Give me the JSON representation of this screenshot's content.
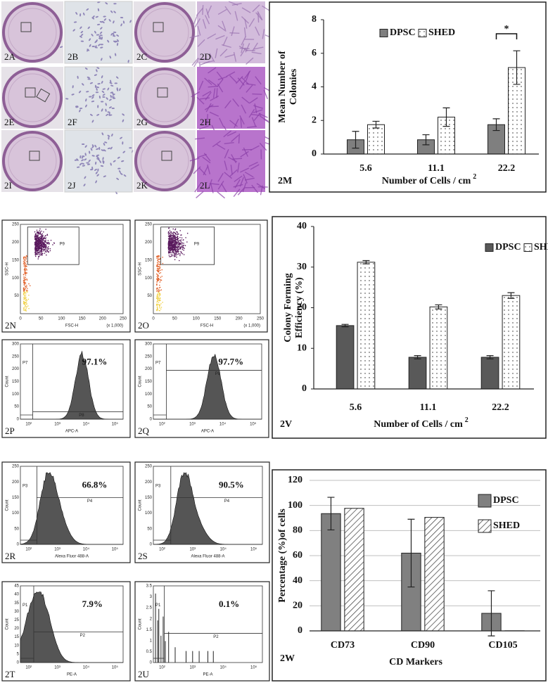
{
  "image_panels": {
    "labels": [
      "2A",
      "2B",
      "2C",
      "2D",
      "2E",
      "2F",
      "2G",
      "2H",
      "2I",
      "2J",
      "2K",
      "2L"
    ]
  },
  "flow_panels": [
    {
      "type": "scatter",
      "label": "2N",
      "y_axis": "SSC-H",
      "x_axis": "FSC-H",
      "gate": "P9",
      "x_unit": "(x 1,000)",
      "x_ticks": [
        "0",
        "50",
        "100",
        "150",
        "200",
        "250"
      ],
      "y_ticks": [
        "50",
        "100",
        "150",
        "200",
        "250"
      ]
    },
    {
      "type": "scatter",
      "label": "2O",
      "y_axis": "SSC-H",
      "x_axis": "FSC-H",
      "gate": "P9",
      "x_unit": "(x 1,000)",
      "x_ticks": [
        "0",
        "50",
        "100",
        "150",
        "200",
        "250"
      ],
      "y_ticks": [
        "50",
        "100",
        "150",
        "200",
        "250"
      ]
    },
    {
      "type": "histogram",
      "label": "2P",
      "y_axis": "Count",
      "x_axis": "APC-A",
      "gates": [
        "P7",
        "P8"
      ],
      "percent": "97.1%",
      "x_ticks": [
        "10²",
        "10³",
        "10⁴",
        "10⁵"
      ],
      "y_ticks": [
        "0",
        "50",
        "100",
        "150",
        "200",
        "250",
        "300"
      ]
    },
    {
      "type": "histogram",
      "label": "2Q",
      "y_axis": "Count",
      "x_axis": "APC-A",
      "gates": [
        "P7",
        "P8"
      ],
      "percent": "97.7%",
      "x_ticks": [
        "10²",
        "10³",
        "10⁴",
        "10⁵"
      ],
      "y_ticks": [
        "0",
        "50",
        "100",
        "150",
        "200",
        "250",
        "300"
      ]
    },
    {
      "type": "histogram",
      "label": "2R",
      "y_axis": "Count",
      "x_axis": "Alexa Fluor 488-A",
      "gates": [
        "P3",
        "P4"
      ],
      "percent": "66.8%",
      "x_ticks": [
        "10²",
        "10³",
        "10⁴",
        "10⁵"
      ],
      "y_ticks": [
        "0",
        "50",
        "100",
        "150",
        "200",
        "250"
      ]
    },
    {
      "type": "histogram",
      "label": "2S",
      "y_axis": "Count",
      "x_axis": "Alexa Fluor 488-A",
      "gates": [
        "P3",
        "P4"
      ],
      "percent": "90.5%",
      "x_ticks": [
        "10²",
        "10³",
        "10⁴",
        "10⁵"
      ],
      "y_ticks": [
        "0",
        "50",
        "100",
        "150",
        "200",
        "250"
      ]
    },
    {
      "type": "histogram",
      "label": "2T",
      "y_axis": "Count",
      "x_axis": "PE-A",
      "gates": [
        "P1",
        "P2"
      ],
      "percent": "7.9%",
      "x_ticks": [
        "10²",
        "10³",
        "10⁴",
        "10⁵"
      ],
      "y_ticks": [
        "0",
        "5",
        "10",
        "15",
        "20",
        "25",
        "30",
        "35",
        "40",
        "45"
      ]
    },
    {
      "type": "histogram",
      "label": "2U",
      "y_axis": "Count",
      "x_axis": "PE-A",
      "gates": [
        "P1",
        "P2"
      ],
      "percent": "0.1%",
      "x_ticks": [
        "10²",
        "10³",
        "10⁴",
        "10⁵"
      ],
      "y_ticks": [
        "0",
        "0.5",
        "1",
        "1.5",
        "2",
        "2.5",
        "3",
        "3.5"
      ]
    }
  ],
  "chart_data": [
    {
      "type": "bar",
      "panel_label": "2M",
      "y_label": [
        "Mean  Number  of",
        "Colonies"
      ],
      "x_label": "Number  of Cells / cm",
      "x_label_sup": "2",
      "categories": [
        "5.6",
        "11.1",
        "22.2"
      ],
      "series": [
        {
          "name": "DPSC",
          "color": "#7f7f7f",
          "values": [
            0.85,
            0.85,
            1.75
          ],
          "errors": [
            0.5,
            0.3,
            0.35
          ]
        },
        {
          "name": "SHED",
          "color": "#ffffff",
          "pattern": "dots",
          "values": [
            1.75,
            2.2,
            5.15
          ],
          "errors": [
            0.2,
            0.55,
            1.0
          ]
        }
      ],
      "ylim": [
        0,
        8
      ],
      "yticks": [
        0,
        2,
        4,
        6,
        8
      ],
      "grid": false,
      "legend": "top",
      "annotation": "*"
    },
    {
      "type": "bar",
      "panel_label": "2V",
      "y_label": [
        "Colony  Forming",
        "Efficiency  (%)"
      ],
      "x_label": "Number  of Cells / cm",
      "x_label_sup": "2",
      "categories": [
        "5.6",
        "11.1",
        "22.2"
      ],
      "series": [
        {
          "name": "DPSC",
          "color": "#595959",
          "values": [
            15.6,
            7.8,
            7.8
          ],
          "errors": [
            0.3,
            0.4,
            0.4
          ]
        },
        {
          "name": "SHED",
          "color": "#ffffff",
          "pattern": "dots",
          "values": [
            31.2,
            20.2,
            23.0
          ],
          "errors": [
            0.4,
            0.5,
            0.7
          ]
        }
      ],
      "ylim": [
        0,
        40
      ],
      "yticks": [
        0,
        10,
        20,
        30,
        40
      ],
      "grid": false,
      "legend": "top"
    },
    {
      "type": "bar",
      "panel_label": "2W",
      "y_label": [
        "Percentage  (%)of  cells"
      ],
      "x_label": "CD Markers",
      "categories": [
        "CD73",
        "CD90",
        "CD105"
      ],
      "series": [
        {
          "name": "DPSC",
          "color": "#808080",
          "values": [
            93.5,
            62,
            14
          ],
          "errors": [
            13,
            27,
            18
          ]
        },
        {
          "name": "SHED",
          "color": "#ffffff",
          "pattern": "hatch",
          "values": [
            97.7,
            90.5,
            0.1
          ]
        }
      ],
      "ylim": [
        0,
        120
      ],
      "yticks": [
        0,
        20,
        40,
        60,
        80,
        100,
        120
      ],
      "grid": true,
      "legend": "right"
    }
  ]
}
